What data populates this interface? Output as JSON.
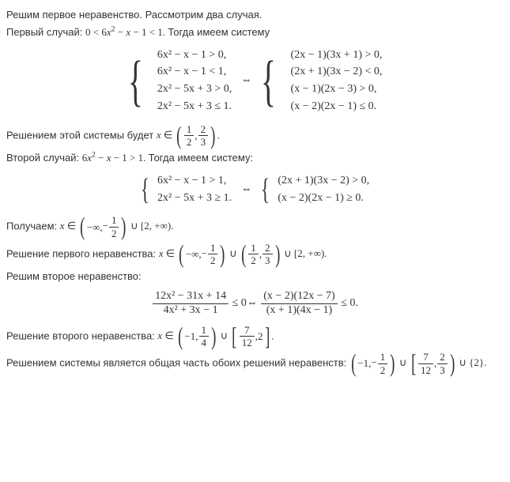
{
  "p1": "Решим первое неравенство. Рассмотрим два случая.",
  "p2_a": "Первый случай: ",
  "p2_b": "0 < 6",
  "p2_c": " − ",
  "p2_d": " − 1 < 1.",
  "p2_e": " Тогда имеем систему",
  "x": "x",
  "sq": "2",
  "sys1_l1": "6x² − x − 1 > 0,",
  "sys1_l2": "6x² − x − 1 < 1,",
  "sys1_l3": "2x² − 5x + 3 > 0,",
  "sys1_l4": "2x² − 5x + 3 ≤ 1.",
  "iff": "⇔",
  "sys1_r1": "(2x − 1)(3x + 1) > 0,",
  "sys1_r2": "(2x + 1)(3x − 2) < 0,",
  "sys1_r3": "(x − 1)(2x − 3) > 0,",
  "sys1_r4": "(x − 2)(2x − 1) ≤ 0.",
  "p3_a": "Решением этой системы будет ",
  "p3_x": "x",
  "p3_in": " ∈ ",
  "f12_n": "1",
  "f12_d": "2",
  "f23_n": "2",
  "f23_d": "3",
  "comma": ", ",
  "period": ".",
  "p4_a": "Второй случай: ",
  "p4_b": "6",
  "p4_c": " − ",
  "p4_d": " − 1 > 1.",
  "p4_e": " Тогда имеем систему:",
  "sys2_l1": "6x² − x − 1 > 1,",
  "sys2_l2": "2x² − 5x + 3 ≥ 1.",
  "sys2_r1": "(2x + 1)(3x − 2) > 0,",
  "sys2_r2": "(x − 2)(2x − 1) ≥ 0.",
  "p5_a": "Получаем: ",
  "ninf": "−∞",
  "m12_n": "1",
  "m12_d": "2",
  "minus": "−",
  "union": " ∪ ",
  "p5_tail": "[2, +∞).",
  "p6_a": "Решение первого неравенства: ",
  "p6_tail": "[2, +∞).",
  "p7": "Решим второе неравенство:",
  "frac_top": "12x² − 31x + 14",
  "frac_bot": "4x² + 3x − 1",
  "le0": " ≤ 0 ",
  "frac2_top": "(x − 2)(12x − 7)",
  "frac2_bot": "(x + 1)(4x − 1)",
  "le0b": " ≤ 0.",
  "p8_a": "Решение второго неравенства: ",
  "m1": "−1",
  "f14_n": "1",
  "f14_d": "4",
  "f712_n": "7",
  "f712_d": "12",
  "two": "2",
  "p9_a": "Решением системы является общая часть обоих решений неравенств:",
  "set2": "{2}."
}
